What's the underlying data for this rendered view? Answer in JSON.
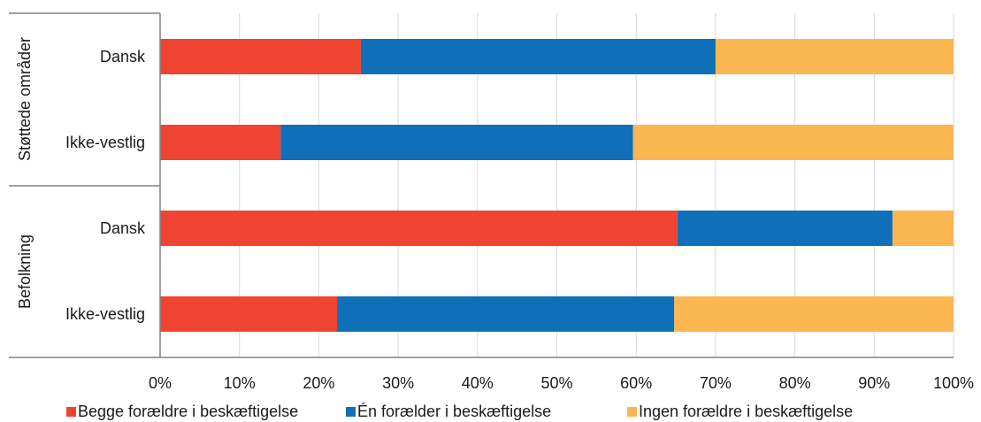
{
  "chart_data": {
    "type": "bar",
    "orientation": "horizontal",
    "stacked": "percent",
    "groups": [
      {
        "label": "Støttede områder",
        "categories": [
          "Dansk",
          "Ikke-vestlig"
        ]
      },
      {
        "label": "Befolkning",
        "categories": [
          "Dansk",
          "Ikke-vestlig"
        ]
      }
    ],
    "series": [
      {
        "name": "Begge forældre i beskæftigelse",
        "color": "#ee4431",
        "values": [
          25.3,
          15.2,
          65.2,
          22.3
        ]
      },
      {
        "name": "Én forælder i beskæftigelse",
        "color": "#0f6fb8",
        "values": [
          44.7,
          44.4,
          27.1,
          42.5
        ]
      },
      {
        "name": "Ingen forældre i beskæftigelse",
        "color": "#fbb652",
        "values": [
          30.0,
          40.4,
          7.7,
          35.2
        ]
      }
    ],
    "xlim": [
      0,
      100
    ],
    "xticks": [
      "0%",
      "10%",
      "20%",
      "30%",
      "40%",
      "50%",
      "60%",
      "70%",
      "80%",
      "90%",
      "100%"
    ],
    "grid": "vertical",
    "legend_position": "bottom"
  }
}
